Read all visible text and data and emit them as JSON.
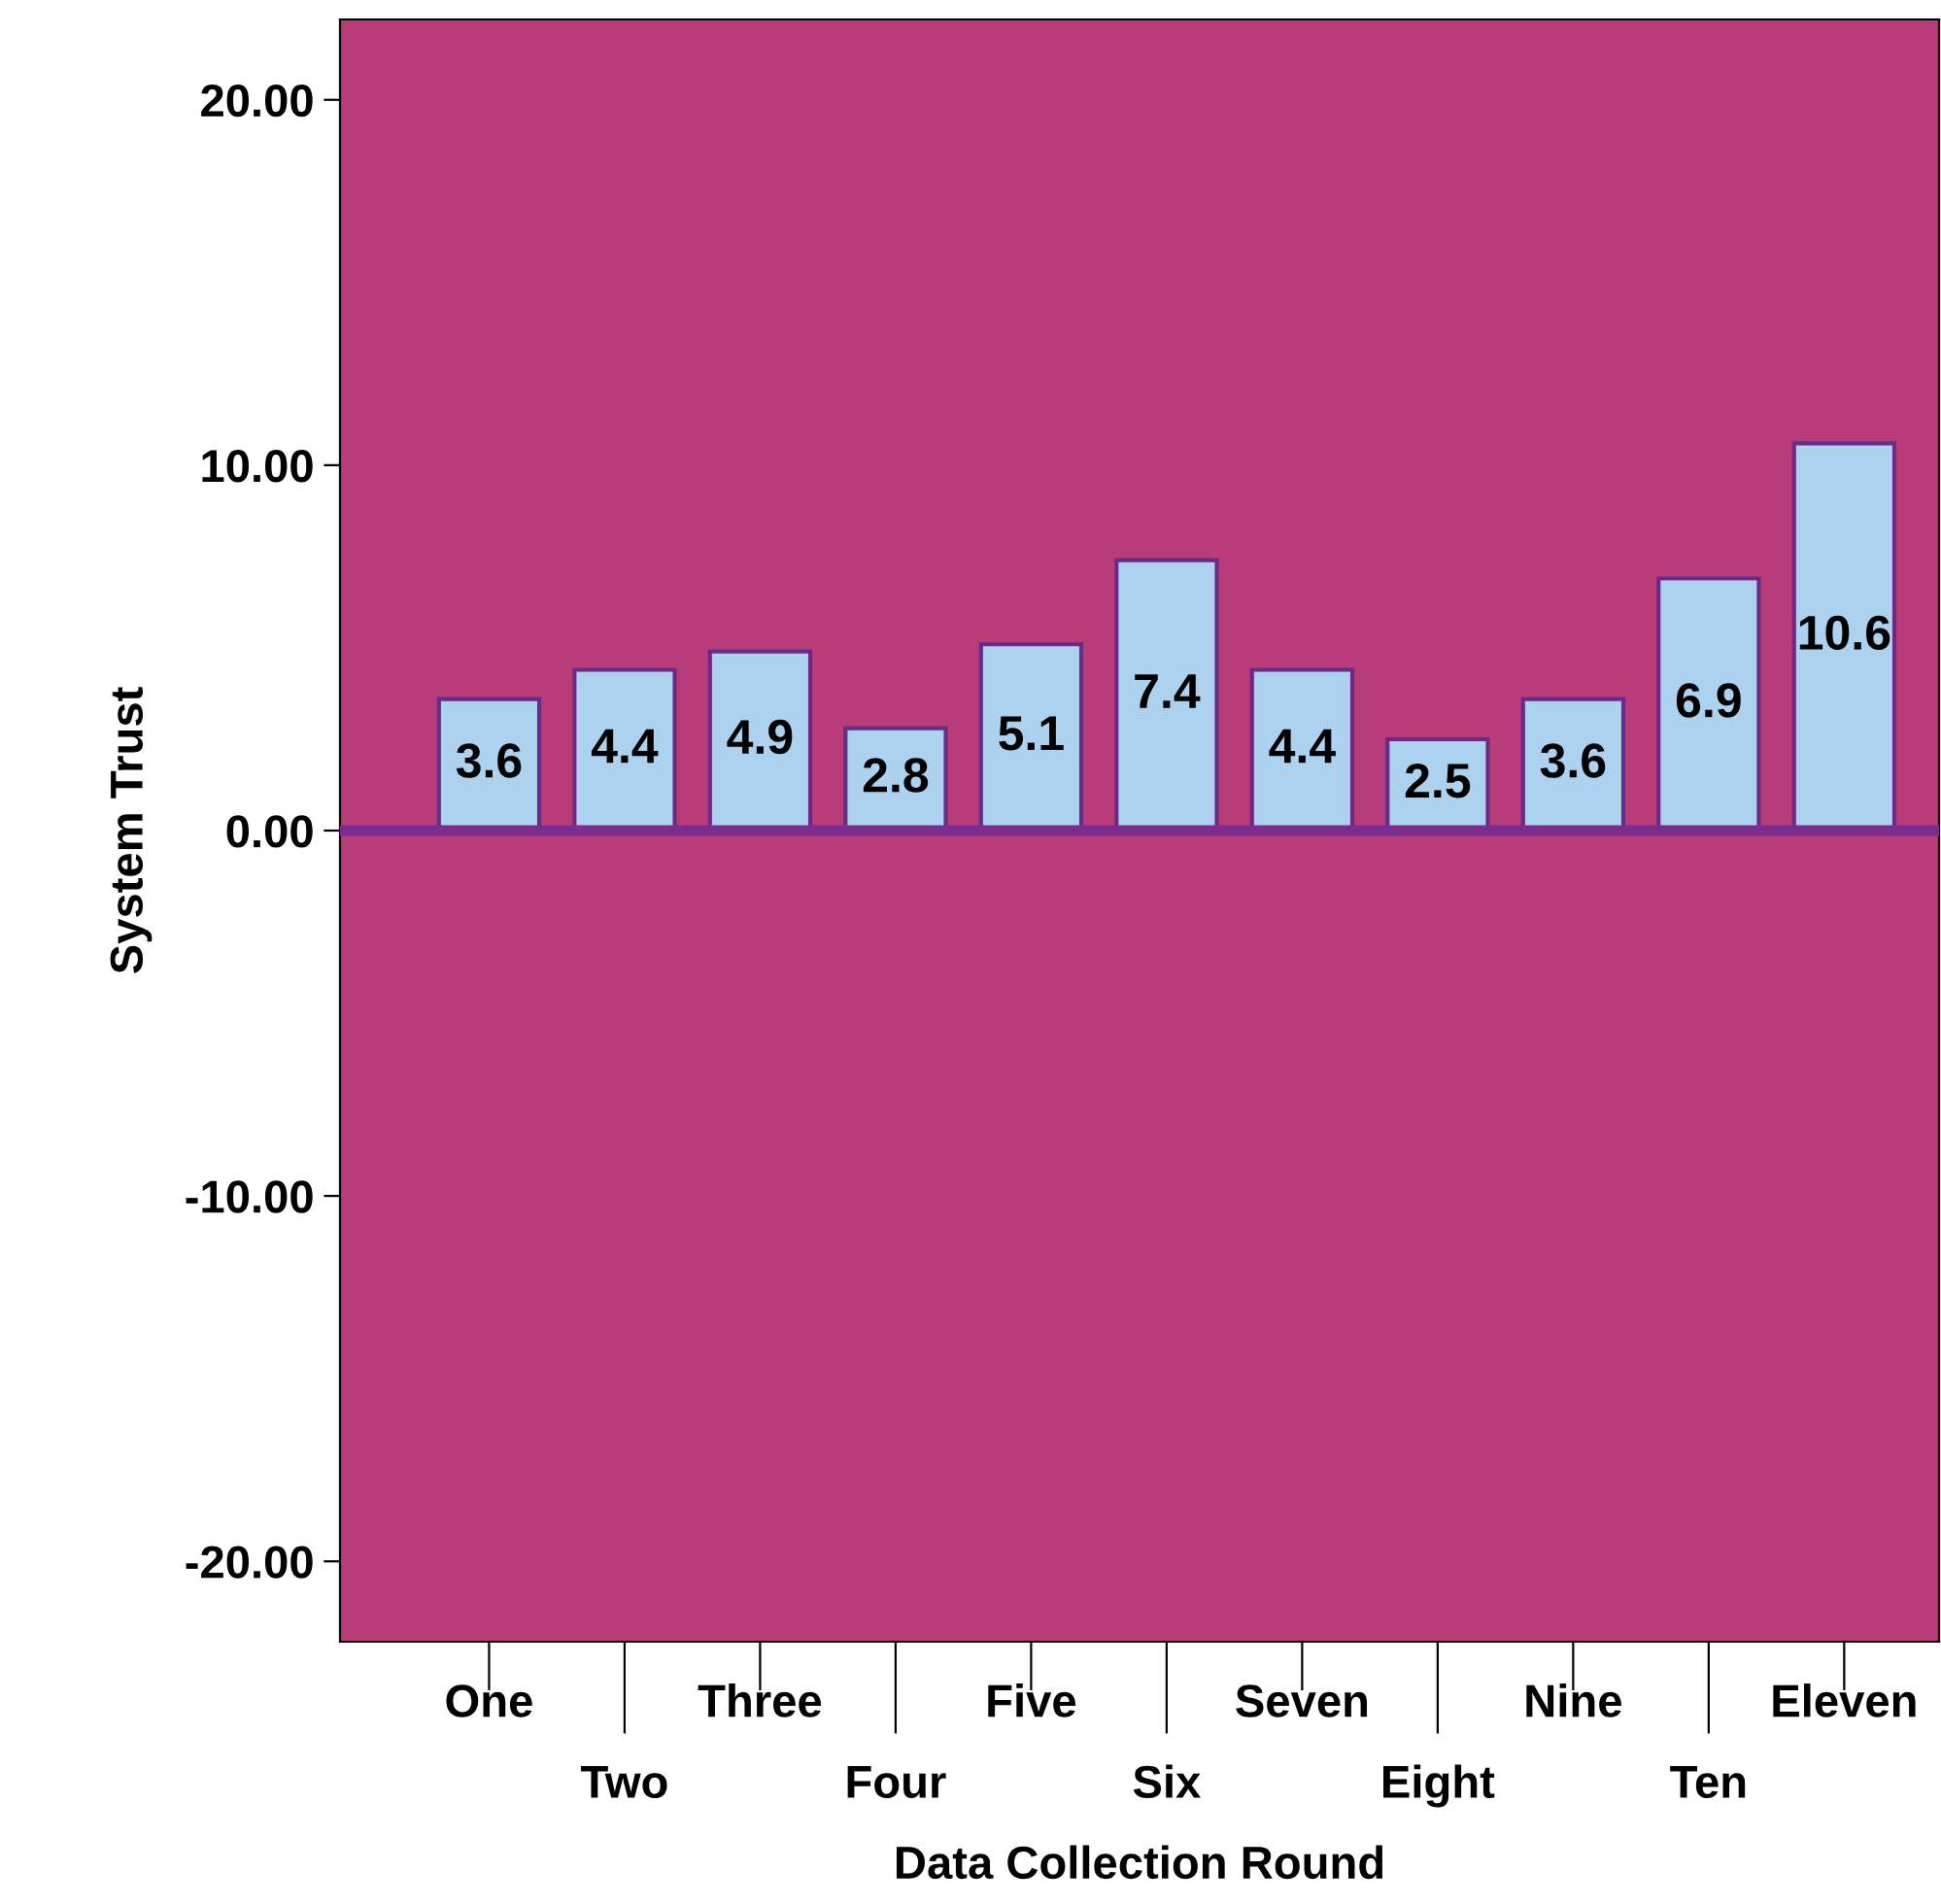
{
  "chart_data": {
    "type": "bar",
    "xlabel": "Data Collection Round",
    "ylabel": "System Trust",
    "categories": [
      "One",
      "Two",
      "Three",
      "Four",
      "Five",
      "Six",
      "Seven",
      "Eight",
      "Nine",
      "Ten",
      "Eleven"
    ],
    "values": [
      3.6,
      4.4,
      4.9,
      2.8,
      5.1,
      7.4,
      4.4,
      2.5,
      3.6,
      6.9,
      10.6
    ],
    "color": "#acd2ef",
    "ylim": [
      -22.2,
      22.2
    ],
    "yticks": [
      {
        "value": -20,
        "label": "-20.00"
      },
      {
        "value": -10,
        "label": "-10.00"
      },
      {
        "value": 0,
        "label": "0.00"
      },
      {
        "value": 10,
        "label": "10.00"
      },
      {
        "value": 20,
        "label": "20.00"
      }
    ],
    "ref_lines": [
      {
        "axis": "y",
        "value": 0,
        "label": null,
        "color": "#7b2c8c"
      }
    ],
    "data_labels": true,
    "grid": false,
    "legend": false
  }
}
